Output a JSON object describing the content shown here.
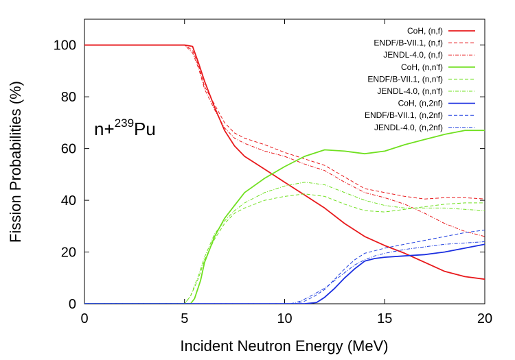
{
  "chart_data": {
    "type": "line",
    "title": "",
    "xlabel": "Incident Neutron Energy (MeV)",
    "ylabel": "Fission Probabilities (%)",
    "xlim": [
      0,
      20
    ],
    "ylim": [
      0,
      110
    ],
    "xticks": [
      0,
      5,
      10,
      15,
      20
    ],
    "yticks": [
      0,
      20,
      40,
      60,
      80,
      100
    ],
    "xtick_labels": [
      "0",
      "5",
      "10",
      "15",
      "20"
    ],
    "ytick_labels": [
      "0",
      "20",
      "40",
      "60",
      "80",
      "100"
    ],
    "grid": false,
    "legend_position": "top-right",
    "annotation": {
      "base": "n+",
      "sup": "239",
      "tail": "Pu"
    },
    "series": [
      {
        "name": "CoH, (n,f)",
        "color": "#e8191c",
        "dash": "solid",
        "points": [
          [
            0,
            100
          ],
          [
            5,
            100
          ],
          [
            5.4,
            99.5
          ],
          [
            5.7,
            93
          ],
          [
            6,
            86
          ],
          [
            6.5,
            76
          ],
          [
            7,
            67
          ],
          [
            7.5,
            61
          ],
          [
            8,
            57
          ],
          [
            9,
            52
          ],
          [
            10,
            47
          ],
          [
            11,
            42
          ],
          [
            12,
            37
          ],
          [
            13,
            31
          ],
          [
            14,
            26
          ],
          [
            15,
            22.5
          ],
          [
            16,
            19.5
          ],
          [
            17,
            16
          ],
          [
            18,
            12.5
          ],
          [
            19,
            10.5
          ],
          [
            20,
            9.5
          ]
        ]
      },
      {
        "name": "ENDF/B-VII.1, (n,f)",
        "color": "#e8191c",
        "dash": "dashed",
        "points": [
          [
            0,
            100
          ],
          [
            5,
            100
          ],
          [
            5.4,
            98
          ],
          [
            5.7,
            92
          ],
          [
            6,
            84
          ],
          [
            6.5,
            77
          ],
          [
            7,
            70
          ],
          [
            7.5,
            66
          ],
          [
            8,
            64
          ],
          [
            9,
            61.5
          ],
          [
            10,
            58.5
          ],
          [
            11,
            56
          ],
          [
            12,
            53.5
          ],
          [
            13,
            49
          ],
          [
            14,
            44.5
          ],
          [
            15,
            43
          ],
          [
            16,
            41.5
          ],
          [
            17,
            40.5
          ],
          [
            18,
            41
          ],
          [
            19,
            41
          ],
          [
            20,
            40.5
          ]
        ]
      },
      {
        "name": "JENDL-4.0, (n,f)",
        "color": "#e8191c",
        "dash": "dashdot",
        "points": [
          [
            0,
            100
          ],
          [
            5,
            100
          ],
          [
            5.4,
            97
          ],
          [
            5.7,
            91
          ],
          [
            6,
            83
          ],
          [
            6.5,
            75
          ],
          [
            7,
            68
          ],
          [
            7.5,
            64
          ],
          [
            8,
            62
          ],
          [
            9,
            59
          ],
          [
            10,
            57
          ],
          [
            11,
            54
          ],
          [
            12,
            51.5
          ],
          [
            13,
            47
          ],
          [
            14,
            43
          ],
          [
            15,
            41
          ],
          [
            16,
            38.5
          ],
          [
            17,
            35
          ],
          [
            18,
            31
          ],
          [
            19,
            28
          ],
          [
            20,
            26
          ]
        ]
      },
      {
        "name": "CoH, (n,n'f)",
        "color": "#70e020",
        "dash": "solid",
        "points": [
          [
            0,
            0
          ],
          [
            5.3,
            0
          ],
          [
            5.5,
            2
          ],
          [
            5.8,
            9
          ],
          [
            6,
            16
          ],
          [
            6.5,
            26
          ],
          [
            7,
            33
          ],
          [
            7.5,
            38
          ],
          [
            8,
            43
          ],
          [
            9,
            48.5
          ],
          [
            10,
            53
          ],
          [
            11,
            57
          ],
          [
            12,
            59.5
          ],
          [
            13,
            59
          ],
          [
            14,
            58
          ],
          [
            15,
            59
          ],
          [
            16,
            61.5
          ],
          [
            17,
            63.5
          ],
          [
            18,
            65.5
          ],
          [
            19,
            67
          ],
          [
            20,
            67
          ]
        ]
      },
      {
        "name": "ENDF/B-VII.1, (n,n'f)",
        "color": "#70e020",
        "dash": "dashed",
        "points": [
          [
            0,
            0
          ],
          [
            5,
            0
          ],
          [
            5.3,
            3
          ],
          [
            5.7,
            10
          ],
          [
            6,
            17
          ],
          [
            6.5,
            25
          ],
          [
            7,
            31
          ],
          [
            7.5,
            35
          ],
          [
            8,
            37
          ],
          [
            9,
            40
          ],
          [
            10,
            41.5
          ],
          [
            11,
            42.5
          ],
          [
            12,
            41.5
          ],
          [
            13,
            38.5
          ],
          [
            14,
            36
          ],
          [
            15,
            35.5
          ],
          [
            16,
            36.5
          ],
          [
            17,
            37.5
          ],
          [
            18,
            38.5
          ],
          [
            19,
            39
          ],
          [
            20,
            39
          ]
        ]
      },
      {
        "name": "JENDL-4.0, (n,n'f)",
        "color": "#70e020",
        "dash": "dashdot",
        "points": [
          [
            0,
            0
          ],
          [
            5,
            0
          ],
          [
            5.3,
            3
          ],
          [
            5.7,
            11
          ],
          [
            6,
            18
          ],
          [
            6.5,
            27
          ],
          [
            7,
            32
          ],
          [
            7.5,
            36
          ],
          [
            8,
            39
          ],
          [
            9,
            43
          ],
          [
            10,
            45.5
          ],
          [
            11,
            47
          ],
          [
            12,
            46
          ],
          [
            13,
            43
          ],
          [
            14,
            40
          ],
          [
            15,
            38
          ],
          [
            16,
            37
          ],
          [
            17,
            37
          ],
          [
            18,
            37
          ],
          [
            19,
            36.5
          ],
          [
            20,
            36
          ]
        ]
      },
      {
        "name": "CoH, (n,2nf)",
        "color": "#1a2ee0",
        "dash": "solid",
        "points": [
          [
            0,
            0
          ],
          [
            11,
            0
          ],
          [
            11.6,
            0.5
          ],
          [
            12,
            2.5
          ],
          [
            12.5,
            6
          ],
          [
            13,
            10
          ],
          [
            13.5,
            13.5
          ],
          [
            14,
            16.5
          ],
          [
            14.5,
            17.5
          ],
          [
            15,
            18
          ],
          [
            16,
            18.5
          ],
          [
            17,
            19
          ],
          [
            18,
            20
          ],
          [
            19,
            21.5
          ],
          [
            20,
            23
          ]
        ]
      },
      {
        "name": "ENDF/B-VII.1, (n,2nf)",
        "color": "#2040e0",
        "dash": "dashed",
        "points": [
          [
            0,
            0
          ],
          [
            10.5,
            0
          ],
          [
            11,
            1
          ],
          [
            11.5,
            3
          ],
          [
            12,
            5.5
          ],
          [
            12.5,
            9.5
          ],
          [
            13,
            13.5
          ],
          [
            13.5,
            17
          ],
          [
            14,
            19.5
          ],
          [
            14.5,
            20.5
          ],
          [
            15,
            21.5
          ],
          [
            16,
            23
          ],
          [
            17,
            24.5
          ],
          [
            18,
            26
          ],
          [
            19,
            27.5
          ],
          [
            20,
            28.5
          ]
        ]
      },
      {
        "name": "JENDL-4.0, (n,2nf)",
        "color": "#2040e0",
        "dash": "dashdot",
        "points": [
          [
            0,
            0
          ],
          [
            10.3,
            0
          ],
          [
            10.8,
            1
          ],
          [
            11.3,
            3
          ],
          [
            12,
            6
          ],
          [
            12.5,
            9
          ],
          [
            13,
            12
          ],
          [
            13.5,
            15
          ],
          [
            14,
            17
          ],
          [
            14.5,
            18.5
          ],
          [
            15,
            19.5
          ],
          [
            16,
            21
          ],
          [
            17,
            22
          ],
          [
            18,
            23
          ],
          [
            19,
            23.5
          ],
          [
            20,
            24
          ]
        ]
      }
    ]
  }
}
